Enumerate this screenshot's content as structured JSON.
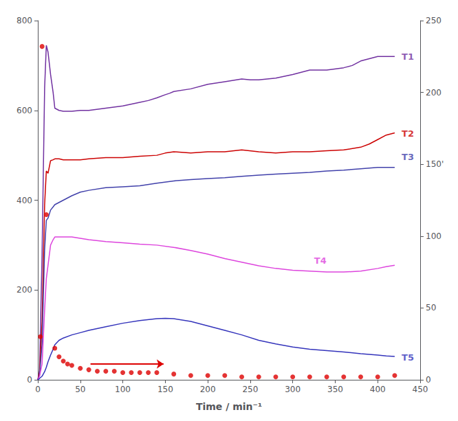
{
  "chart_data": {
    "type": "line",
    "xlabel": "Time / min⁻¹",
    "xlim": [
      0,
      450
    ],
    "xticks": [
      0,
      50,
      100,
      150,
      200,
      250,
      300,
      350,
      400,
      450
    ],
    "ylim": [
      0,
      800
    ],
    "yticks": [
      0,
      200,
      400,
      600,
      800
    ],
    "y2lim": [
      0,
      250
    ],
    "y2ticks": [
      0,
      50,
      100,
      {
        "value": 150,
        "label": "150'"
      },
      200,
      250
    ],
    "grid": false,
    "series": [
      {
        "name": "T1",
        "type": "line",
        "color": "#7030a0",
        "x": [
          0,
          2,
          5,
          8,
          10,
          12,
          15,
          18,
          20,
          25,
          30,
          40,
          50,
          60,
          80,
          100,
          120,
          130,
          140,
          150,
          155,
          160,
          180,
          200,
          220,
          240,
          250,
          260,
          270,
          280,
          300,
          320,
          340,
          360,
          370,
          380,
          390,
          400,
          410,
          420
        ],
        "values": [
          0,
          20,
          280,
          650,
          745,
          730,
          680,
          640,
          605,
          600,
          598,
          598,
          600,
          600,
          605,
          610,
          618,
          622,
          628,
          635,
          638,
          642,
          648,
          658,
          664,
          670,
          668,
          668,
          670,
          672,
          680,
          690,
          690,
          695,
          700,
          710,
          715,
          720,
          720,
          720
        ]
      },
      {
        "name": "T2",
        "type": "line",
        "color": "#cc0000",
        "x": [
          0,
          2,
          5,
          8,
          10,
          12,
          15,
          18,
          20,
          25,
          30,
          40,
          50,
          60,
          80,
          100,
          120,
          140,
          150,
          160,
          180,
          200,
          220,
          240,
          260,
          280,
          300,
          320,
          340,
          360,
          380,
          390,
          400,
          410,
          420
        ],
        "values": [
          0,
          15,
          130,
          390,
          465,
          460,
          488,
          490,
          492,
          492,
          490,
          490,
          490,
          492,
          495,
          495,
          498,
          500,
          505,
          508,
          505,
          508,
          508,
          512,
          508,
          505,
          508,
          508,
          510,
          512,
          518,
          525,
          535,
          545,
          550
        ]
      },
      {
        "name": "T3",
        "type": "line",
        "color": "#4040aa",
        "x": [
          0,
          2,
          5,
          8,
          10,
          12,
          15,
          18,
          20,
          25,
          30,
          40,
          50,
          60,
          80,
          100,
          120,
          140,
          160,
          180,
          200,
          220,
          240,
          260,
          280,
          300,
          320,
          340,
          360,
          380,
          400,
          410,
          420
        ],
        "values": [
          0,
          10,
          80,
          290,
          355,
          360,
          378,
          385,
          390,
          395,
          400,
          410,
          418,
          422,
          428,
          430,
          432,
          438,
          443,
          446,
          448,
          450,
          453,
          456,
          458,
          460,
          462,
          465,
          467,
          470,
          473,
          473,
          473
        ]
      },
      {
        "name": "T4",
        "type": "line",
        "color": "#dd44dd",
        "x": [
          0,
          2,
          5,
          8,
          10,
          12,
          15,
          18,
          20,
          25,
          30,
          40,
          50,
          60,
          80,
          100,
          120,
          140,
          160,
          180,
          200,
          220,
          240,
          260,
          280,
          300,
          320,
          340,
          360,
          380,
          400,
          410,
          420
        ],
        "values": [
          0,
          8,
          35,
          155,
          225,
          255,
          300,
          312,
          318,
          318,
          318,
          318,
          315,
          312,
          308,
          305,
          302,
          300,
          295,
          288,
          280,
          270,
          262,
          254,
          248,
          244,
          242,
          240,
          240,
          242,
          248,
          252,
          255
        ]
      },
      {
        "name": "T5",
        "type": "line",
        "color": "#3333bb",
        "x": [
          0,
          2,
          5,
          8,
          10,
          12,
          15,
          18,
          20,
          25,
          30,
          40,
          50,
          60,
          80,
          100,
          120,
          140,
          150,
          160,
          180,
          200,
          220,
          240,
          260,
          280,
          300,
          320,
          340,
          360,
          380,
          400,
          410,
          420
        ],
        "values": [
          0,
          3,
          8,
          18,
          28,
          40,
          55,
          68,
          78,
          88,
          93,
          100,
          105,
          110,
          118,
          126,
          132,
          136,
          137,
          136,
          130,
          120,
          110,
          100,
          88,
          80,
          73,
          68,
          65,
          62,
          58,
          55,
          53,
          52
        ]
      },
      {
        "type": "scatter",
        "axis": "y2",
        "color": "#dd0000",
        "marker": "circle",
        "x": [
          3,
          5,
          10,
          20,
          25,
          30,
          35,
          40,
          50,
          60,
          70,
          80,
          90,
          100,
          110,
          120,
          130,
          140,
          160,
          180,
          200,
          220,
          240,
          260,
          280,
          300,
          320,
          340,
          360,
          380,
          400,
          420
        ],
        "values": [
          30,
          232,
          115,
          22,
          16,
          13,
          11,
          10,
          8,
          7,
          6,
          6,
          6,
          5,
          5,
          5,
          5,
          5,
          4,
          3,
          3,
          3,
          2,
          2,
          2,
          2,
          2,
          2,
          2,
          2,
          2,
          3
        ]
      }
    ],
    "arrows": [
      {
        "x_start": 62,
        "x_end": 148,
        "y": 11,
        "axis": "y2",
        "color": "#dd0000"
      }
    ],
    "annotations": [
      {
        "text": "T1",
        "x": 425,
        "y": 720,
        "color": "#7030a0"
      },
      {
        "text": "T2",
        "x": 425,
        "y": 548,
        "color": "#cc0000"
      },
      {
        "text": "T3",
        "x": 425,
        "y": 496,
        "color": "#4040aa"
      },
      {
        "text": "T4",
        "x": 322,
        "y": 265,
        "color": "#dd44dd"
      },
      {
        "text": "T5",
        "x": 425,
        "y": 50,
        "color": "#3333bb"
      }
    ]
  }
}
